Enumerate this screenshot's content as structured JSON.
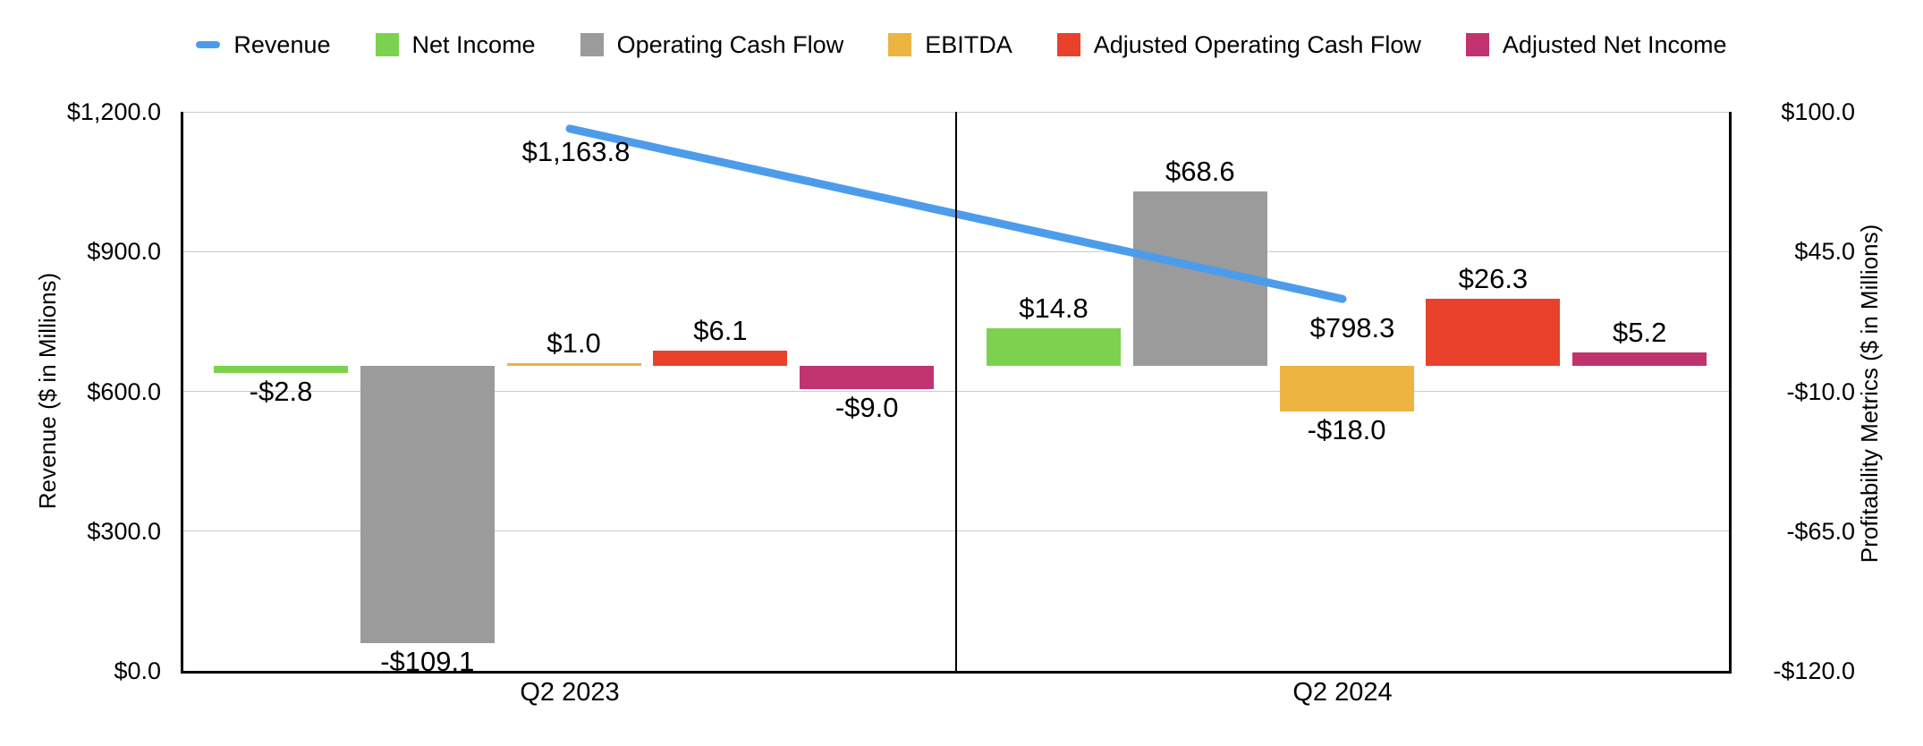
{
  "chart_data": {
    "type": "combo-bar-line",
    "categories": [
      "Q2 2023",
      "Q2 2024"
    ],
    "line_series": {
      "name": "Revenue",
      "color": "#4D9CEC",
      "axis": "left",
      "values": [
        1163.8,
        798.3
      ],
      "data_labels": [
        "$1,163.8",
        "$798.3"
      ]
    },
    "bar_series": [
      {
        "name": "Net Income",
        "color": "#7CD24F",
        "axis": "right",
        "values": [
          -2.8,
          14.8
        ],
        "data_labels": [
          "-$2.8",
          "$14.8"
        ]
      },
      {
        "name": "Operating Cash Flow",
        "color": "#9B9B9B",
        "axis": "right",
        "values": [
          -109.1,
          68.6
        ],
        "data_labels": [
          "-$109.1",
          "$68.6"
        ]
      },
      {
        "name": "EBITDA",
        "color": "#ECB440",
        "axis": "right",
        "values": [
          1.0,
          -18.0
        ],
        "data_labels": [
          "$1.0",
          "-$18.0"
        ]
      },
      {
        "name": "Adjusted Operating Cash Flow",
        "color": "#E8422D",
        "axis": "right",
        "values": [
          6.1,
          26.3
        ],
        "data_labels": [
          "$6.1",
          "$26.3"
        ]
      },
      {
        "name": "Adjusted Net Income",
        "color": "#C1336F",
        "axis": "right",
        "values": [
          -9.0,
          5.2
        ],
        "data_labels": [
          "-$9.0",
          "$5.2"
        ]
      }
    ],
    "left_axis": {
      "title": "Revenue ($ in Millions)",
      "min": 0,
      "max": 1200,
      "ticks": [
        {
          "label": "$0.0",
          "value": 0
        },
        {
          "label": "$300.0",
          "value": 300
        },
        {
          "label": "$600.0",
          "value": 600
        },
        {
          "label": "$900.0",
          "value": 900
        },
        {
          "label": "$1,200.0",
          "value": 1200
        }
      ]
    },
    "right_axis": {
      "title": "Profitability Metrics ($ in Millions)",
      "min": -120,
      "max": 100,
      "ticks": [
        {
          "label": "-$120.0",
          "value": -120
        },
        {
          "label": "-$65.0",
          "value": -65
        },
        {
          "label": "-$10.0",
          "value": -10
        },
        {
          "label": "$45.0",
          "value": 45
        },
        {
          "label": "$100.0",
          "value": 100
        }
      ]
    },
    "legend": [
      {
        "label": "Revenue",
        "marker": "line",
        "color": "#4D9CEC"
      },
      {
        "label": "Net Income",
        "marker": "box",
        "color": "#7CD24F"
      },
      {
        "label": "Operating Cash Flow",
        "marker": "box",
        "color": "#9B9B9B"
      },
      {
        "label": "EBITDA",
        "marker": "box",
        "color": "#ECB440"
      },
      {
        "label": "Adjusted Operating Cash Flow",
        "marker": "box",
        "color": "#E8422D"
      },
      {
        "label": "Adjusted Net Income",
        "marker": "box",
        "color": "#C1336F"
      }
    ],
    "layout_hints": {
      "grid": true,
      "legend_position": "top",
      "category_divider": true
    }
  }
}
